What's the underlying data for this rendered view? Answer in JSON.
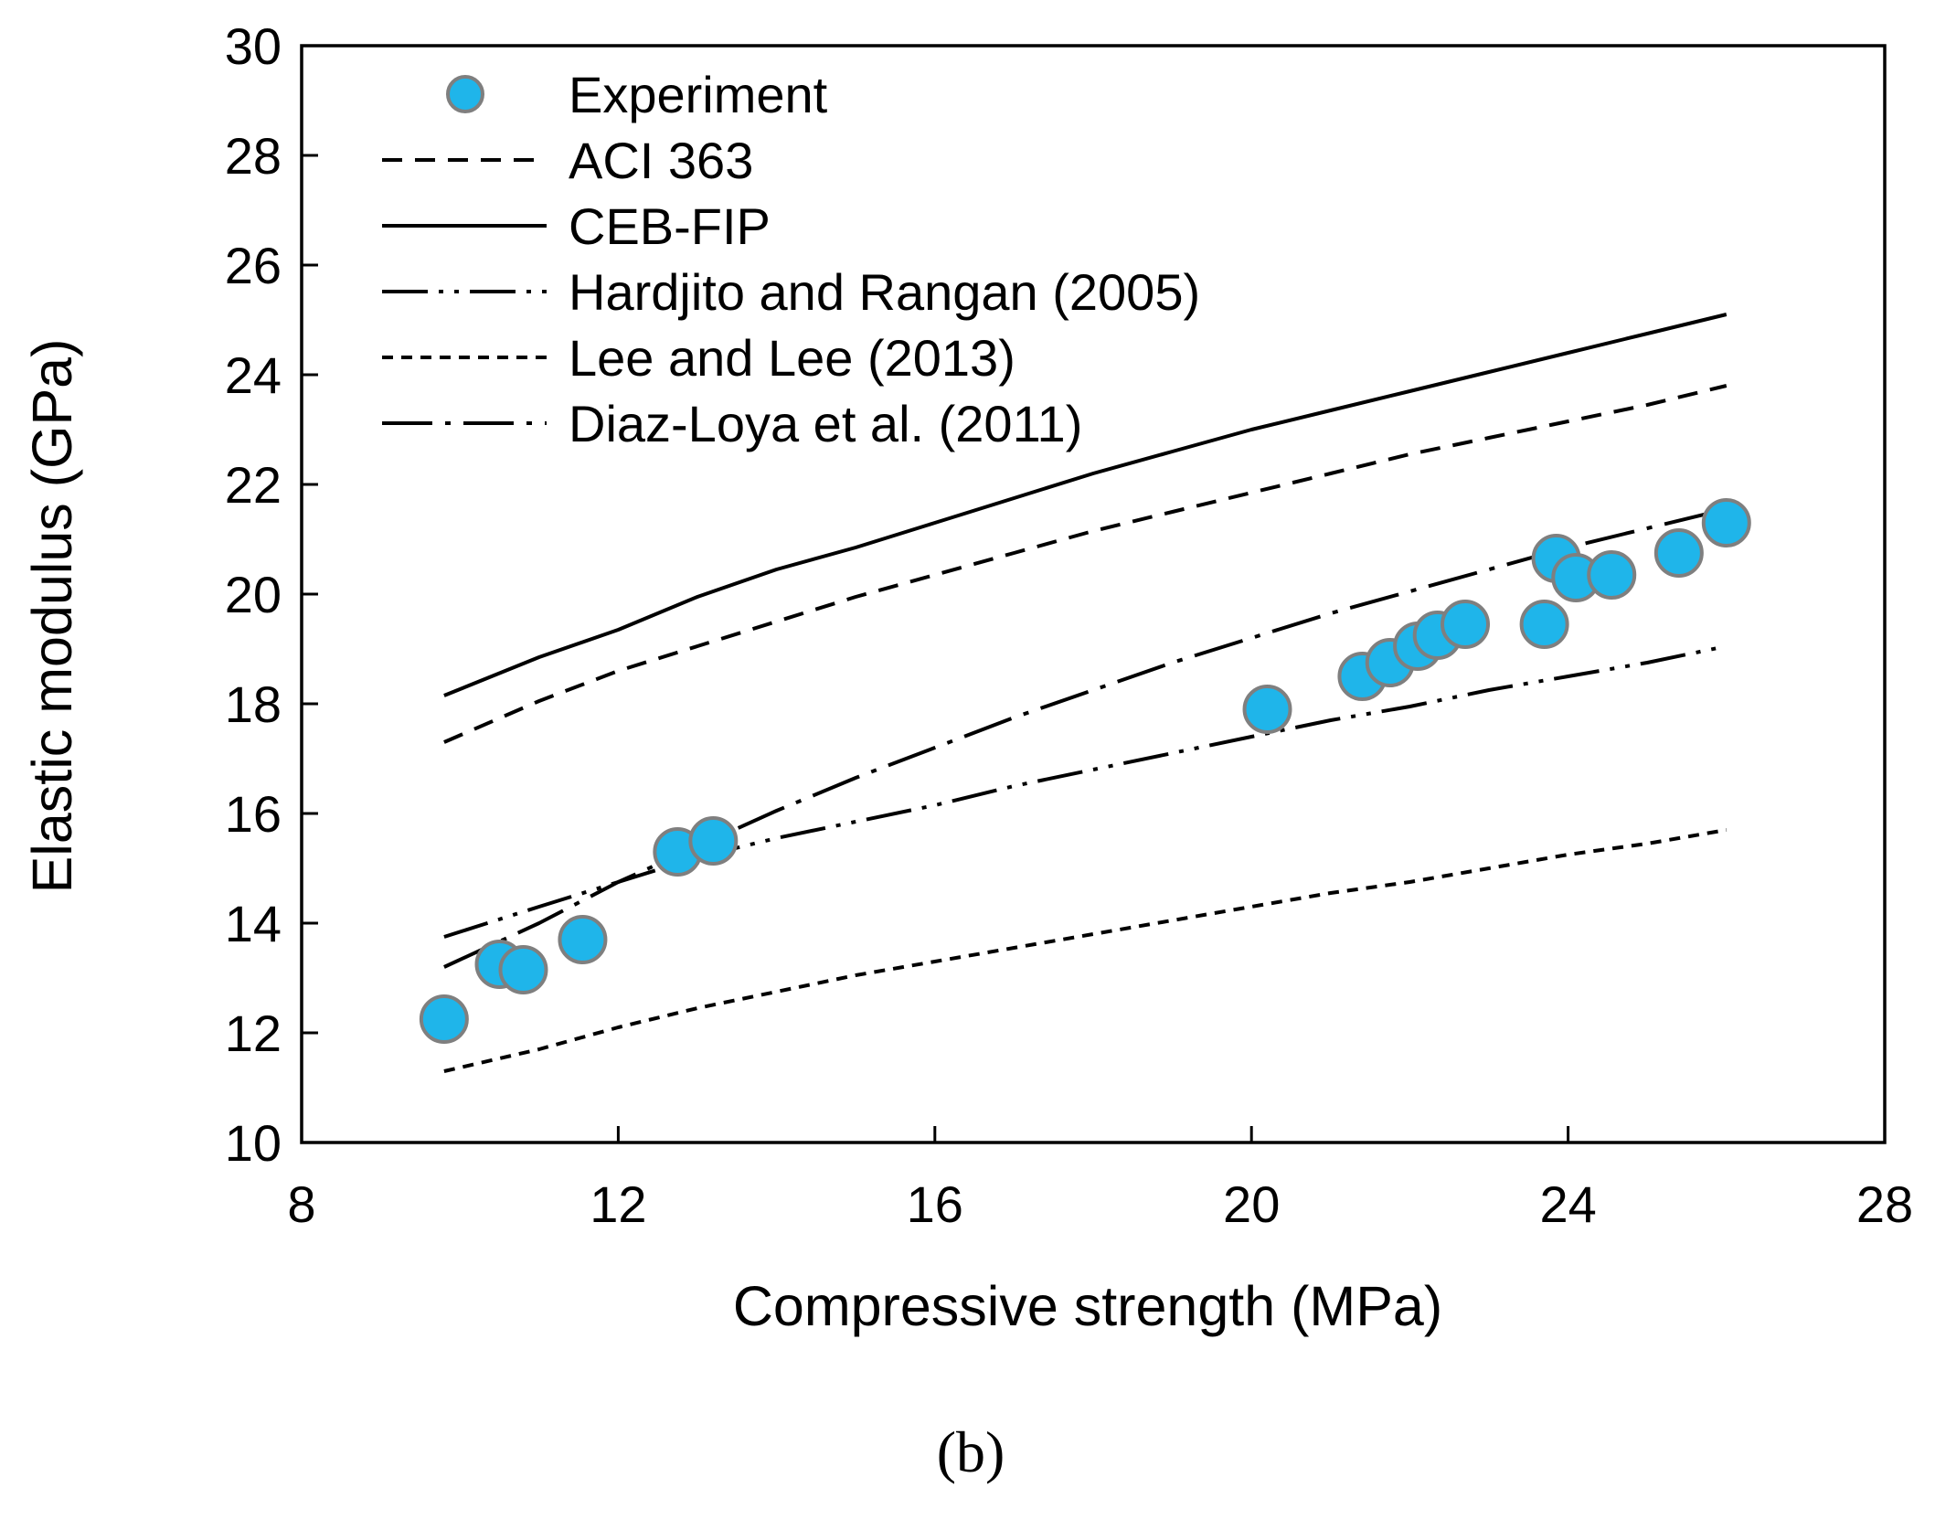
{
  "chart_data": {
    "type": "scatter",
    "title": "",
    "xlabel": "Compressive strength (MPa)",
    "ylabel": "Elastic modulus (GPa)",
    "xlim": [
      8,
      28
    ],
    "ylim": [
      10,
      30
    ],
    "xticks": [
      8,
      12,
      16,
      20,
      24,
      28
    ],
    "yticks": [
      10,
      12,
      14,
      16,
      18,
      20,
      22,
      24,
      26,
      28,
      30
    ],
    "grid": false,
    "legend_position": "top-left",
    "caption": "(b)",
    "marker_color": "#1fb5ea",
    "marker_edge_color": "#7f7f7f",
    "series": [
      {
        "name": "Experiment",
        "style": "marker",
        "x": [
          9.8,
          10.5,
          10.8,
          11.55,
          12.75,
          13.2,
          20.2,
          21.4,
          21.75,
          22.1,
          22.35,
          22.7,
          23.7,
          23.85,
          24.1,
          24.55,
          25.4,
          26.0
        ],
        "y": [
          12.25,
          13.25,
          13.15,
          13.7,
          15.3,
          15.5,
          17.9,
          18.5,
          18.75,
          19.05,
          19.25,
          19.45,
          19.45,
          20.65,
          20.3,
          20.35,
          20.75,
          21.3
        ]
      },
      {
        "name": "ACI 363",
        "style": "dashed",
        "x": [
          9.8,
          11,
          12,
          13,
          14,
          15,
          16,
          17,
          18,
          19,
          20,
          21,
          22,
          23,
          24,
          25,
          26
        ],
        "y": [
          17.3,
          18.05,
          18.6,
          19.05,
          19.5,
          19.95,
          20.35,
          20.75,
          21.15,
          21.5,
          21.85,
          22.2,
          22.55,
          22.85,
          23.15,
          23.45,
          23.8
        ]
      },
      {
        "name": "CEB-FIP",
        "style": "solid",
        "x": [
          9.8,
          11,
          12,
          13,
          14,
          15,
          16,
          17,
          18,
          19,
          20,
          21,
          22,
          23,
          24,
          25,
          26
        ],
        "y": [
          18.15,
          18.85,
          19.35,
          19.95,
          20.45,
          20.85,
          21.3,
          21.75,
          22.2,
          22.6,
          23.0,
          23.35,
          23.7,
          24.05,
          24.4,
          24.75,
          25.1
        ]
      },
      {
        "name": "Hardjito and Rangan (2005)",
        "style": "dash-dot-dot",
        "x": [
          9.8,
          11,
          12,
          13,
          14,
          15,
          16,
          17,
          18,
          19,
          20,
          21,
          22,
          23,
          24,
          25,
          26
        ],
        "y": [
          13.75,
          14.3,
          14.75,
          15.2,
          15.55,
          15.85,
          16.15,
          16.5,
          16.8,
          17.1,
          17.4,
          17.7,
          17.95,
          18.25,
          18.5,
          18.75,
          19.05
        ]
      },
      {
        "name": "Lee and Lee (2013)",
        "style": "short-dashed",
        "x": [
          9.8,
          11,
          12,
          13,
          14,
          15,
          16,
          17,
          18,
          19,
          20,
          21,
          22,
          23,
          24,
          25,
          26
        ],
        "y": [
          11.3,
          11.7,
          12.1,
          12.45,
          12.75,
          13.05,
          13.3,
          13.55,
          13.8,
          14.05,
          14.3,
          14.55,
          14.75,
          15.0,
          15.25,
          15.45,
          15.7
        ]
      },
      {
        "name": "Diaz-Loya et al. (2011)",
        "style": "dash-dot",
        "x": [
          9.8,
          11,
          12,
          13,
          14,
          15,
          16,
          17,
          18,
          19,
          20,
          21,
          22,
          23,
          24,
          25,
          26
        ],
        "y": [
          13.2,
          14.0,
          14.75,
          15.4,
          16.05,
          16.65,
          17.2,
          17.75,
          18.25,
          18.75,
          19.2,
          19.65,
          20.05,
          20.45,
          20.85,
          21.2,
          21.55
        ]
      }
    ]
  }
}
